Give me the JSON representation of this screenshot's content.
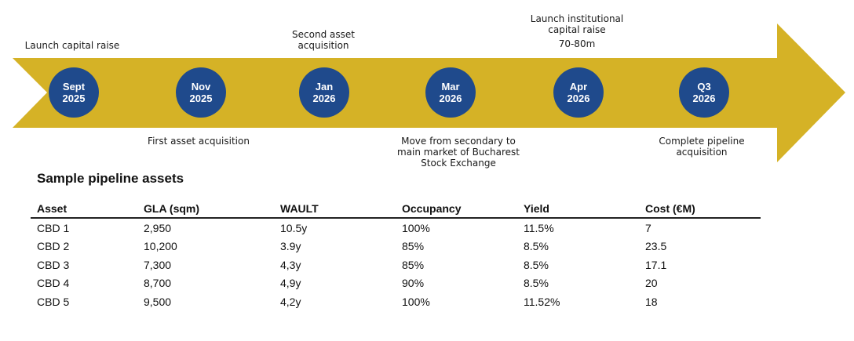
{
  "colors": {
    "arrow": "#d5b226",
    "milestone": "#1f4a8c",
    "milestone_text": "#ffffff"
  },
  "timeline": {
    "milestones": [
      {
        "line1": "Sept",
        "line2": "2025"
      },
      {
        "line1": "Nov",
        "line2": "2025"
      },
      {
        "line1": "Jan",
        "line2": "2026"
      },
      {
        "line1": "Mar",
        "line2": "2026"
      },
      {
        "line1": "Apr",
        "line2": "2026"
      },
      {
        "line1": "Q3",
        "line2": "2026"
      }
    ],
    "events": {
      "launch_capital_raise": [
        "Launch capital raise"
      ],
      "first_asset_acquisition": [
        "First asset acquisition"
      ],
      "second_asset_acquisition": [
        "Second asset",
        "acquisition"
      ],
      "move_to_main_market": [
        "Move from secondary to",
        "main market of Bucharest",
        "Stock Exchange"
      ],
      "launch_institutional_raise": [
        "Launch institutional",
        "capital raise"
      ],
      "institutional_raise_amount": "70-80m",
      "complete_pipeline": [
        "Complete pipeline",
        "acquisition"
      ]
    }
  },
  "pipeline": {
    "title": "Sample pipeline assets",
    "columns": [
      "Asset",
      "GLA (sqm)",
      "WAULT",
      "Occupancy",
      "Yield",
      "Cost (€M)"
    ],
    "rows": [
      [
        "CBD 1",
        "2,950",
        "10.5y",
        "100%",
        "11.5%",
        "7"
      ],
      [
        "CBD 2",
        "10,200",
        "3.9y",
        "85%",
        "8.5%",
        "23.5"
      ],
      [
        "CBD 3",
        "7,300",
        "4,3y",
        "85%",
        "8.5%",
        "17.1"
      ],
      [
        "CBD 4",
        "8,700",
        "4,9y",
        "90%",
        "8.5%",
        "20"
      ],
      [
        "CBD 5",
        "9,500",
        "4,2y",
        "100%",
        "11.52%",
        "18"
      ]
    ]
  }
}
